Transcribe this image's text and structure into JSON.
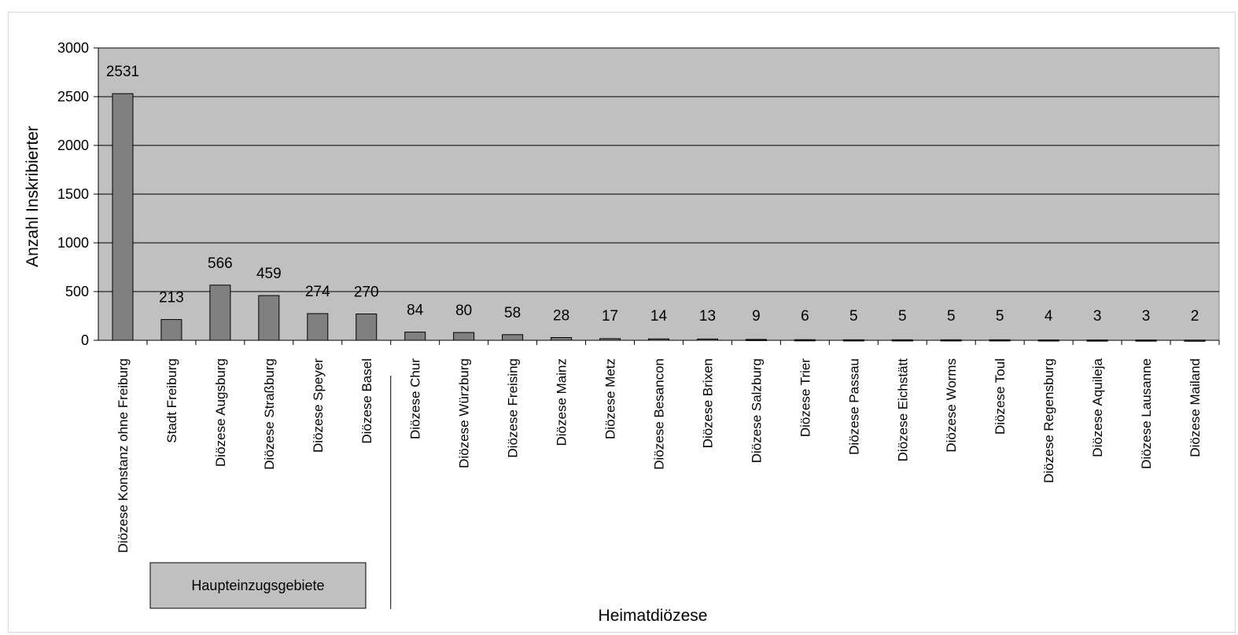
{
  "chart_data": {
    "type": "bar",
    "title": "",
    "xlabel": "Heimatdiözese",
    "ylabel": "Anzahl Inskribierter",
    "ylim": [
      0,
      3000
    ],
    "yticks": [
      0,
      500,
      1000,
      1500,
      2000,
      2500,
      3000
    ],
    "grid": true,
    "categories": [
      "Diözese Konstanz ohne Freiburg",
      "Stadt Freiburg",
      "Diözese Augsburg",
      "Diözese Straßburg",
      "Diözese Speyer",
      "Diözese Basel",
      "Diözese Chur",
      "Diözese Würzburg",
      "Diözese Freising",
      "Diözese Mainz",
      "Diözese Metz",
      "Diözese Besancon",
      "Diözese Brixen",
      "Diözese Salzburg",
      "Diözese Trier",
      "Diözese Passau",
      "Diözese Eichstätt",
      "Diözese Worms",
      "Diözese Toul",
      "Diözese Regensburg",
      "Diözese Aquileja",
      "Diözese Lausanne",
      "Diözese Mailand"
    ],
    "values": [
      2531,
      213,
      566,
      459,
      274,
      270,
      84,
      80,
      58,
      28,
      17,
      14,
      13,
      9,
      6,
      5,
      5,
      5,
      5,
      4,
      3,
      3,
      2
    ],
    "annotation": "Haupteinzugsgebiete",
    "colors": {
      "plot_bg": "#c0c0c0",
      "bar": "#808080",
      "grid": "#000000"
    }
  }
}
